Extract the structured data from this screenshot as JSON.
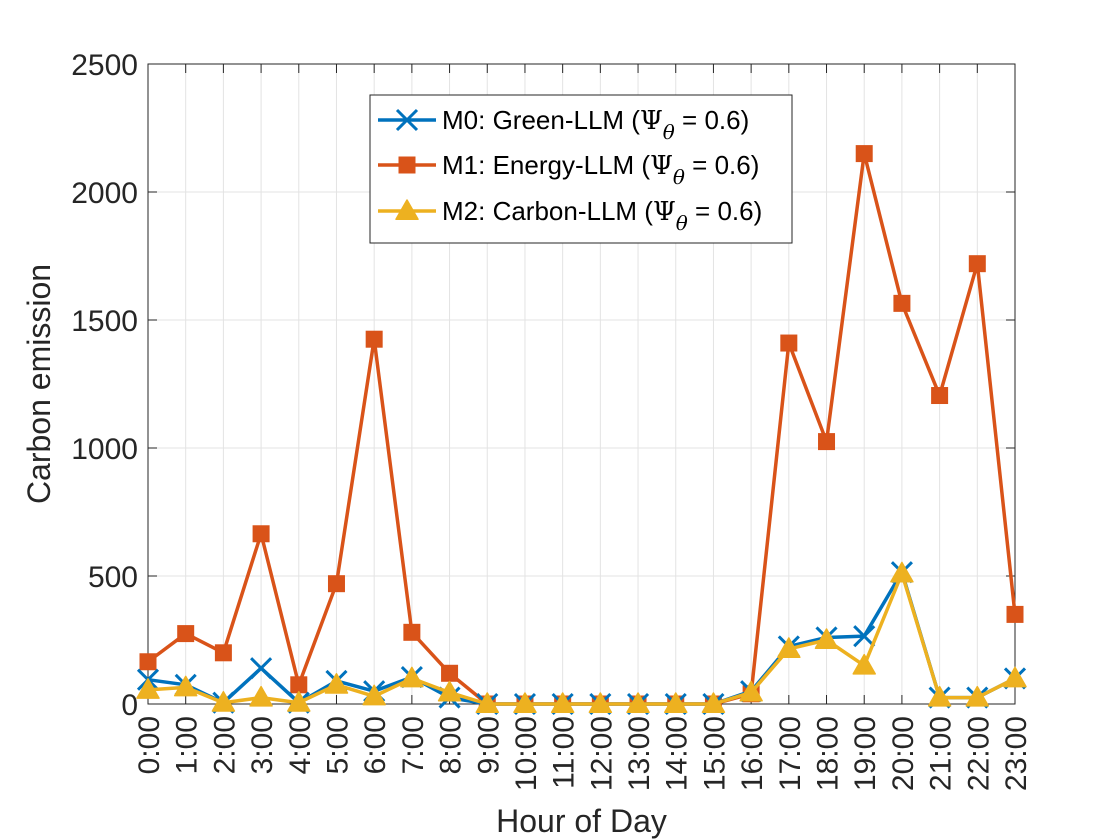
{
  "chart_data": {
    "type": "line",
    "xlabel": "Hour of Day",
    "ylabel": "Carbon emission",
    "x": [
      "0:00",
      "1:00",
      "2:00",
      "3:00",
      "4:00",
      "5:00",
      "6:00",
      "7:00",
      "8:00",
      "9:00",
      "10:00",
      "11:00",
      "12:00",
      "13:00",
      "14:00",
      "15:00",
      "16:00",
      "17:00",
      "18:00",
      "19:00",
      "20:00",
      "21:00",
      "22:00",
      "23:00"
    ],
    "ylim": [
      0,
      2500
    ],
    "yticks": [
      0,
      500,
      1000,
      1500,
      2000,
      2500
    ],
    "ytick_labels": [
      "0",
      "500",
      "1000",
      "1500",
      "2000",
      "2500"
    ],
    "grid": true,
    "legend_position": "top-center",
    "series": [
      {
        "name_prefix": "M0: Green-LLM (",
        "name_symbol": "Ψ",
        "name_subscript": "θ",
        "name_suffix": " = 0.6)",
        "marker": "x",
        "color": "#0072BD",
        "values": [
          95,
          75,
          5,
          140,
          5,
          90,
          50,
          105,
          25,
          0,
          0,
          0,
          0,
          0,
          0,
          0,
          50,
          225,
          260,
          265,
          515,
          25,
          25,
          100
        ]
      },
      {
        "name_prefix": "M1: Energy-LLM (",
        "name_symbol": "Ψ",
        "name_subscript": "θ",
        "name_suffix": " = 0.6)",
        "marker": "square",
        "color": "#D95319",
        "values": [
          165,
          275,
          200,
          665,
          75,
          470,
          1425,
          280,
          120,
          0,
          0,
          0,
          0,
          0,
          0,
          0,
          40,
          1410,
          1025,
          2150,
          1565,
          1205,
          1720,
          350
        ]
      },
      {
        "name_prefix": "M2: Carbon-LLM (",
        "name_symbol": "Ψ",
        "name_subscript": "θ",
        "name_suffix": " = 0.6)",
        "marker": "triangle",
        "color": "#EDB120",
        "values": [
          55,
          65,
          5,
          25,
          5,
          75,
          30,
          100,
          45,
          0,
          0,
          0,
          0,
          0,
          0,
          0,
          45,
          215,
          250,
          150,
          510,
          25,
          25,
          100
        ]
      }
    ]
  }
}
